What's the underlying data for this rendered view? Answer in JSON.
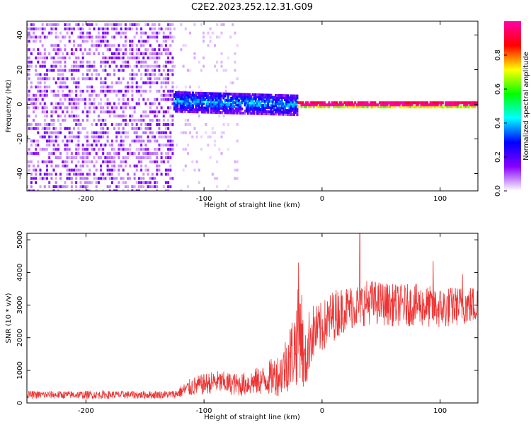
{
  "figure": {
    "title": "C2E2.2023.252.12.31.G09"
  },
  "chart_data": [
    {
      "type": "heatmap",
      "xlabel": "Height of straight line (km)",
      "ylabel": "Frequency (Hz)",
      "xlim": [
        -250,
        132
      ],
      "ylim": [
        -50,
        48
      ],
      "x_ticks": [
        -200,
        -100,
        0,
        100
      ],
      "y_ticks": [
        -40,
        -20,
        0,
        20,
        40
      ],
      "colorbar": {
        "label": "Normalized spectral amplitude",
        "range": [
          0,
          1
        ],
        "ticks": [
          0.0,
          0.2,
          0.4,
          0.6,
          0.8
        ],
        "tick_labels": [
          "0.0",
          "0.2",
          "0.4",
          "0.6",
          "0.8"
        ],
        "colormap": [
          "#ffffff",
          "#8800ff",
          "#0000ff",
          "#00ffff",
          "#00ff00",
          "#ffff00",
          "#ff0000",
          "#ff00aa"
        ]
      },
      "regions": [
        {
          "x_range": [
            -250,
            -125
          ],
          "freq_range": [
            -50,
            48
          ],
          "amplitude": 0.08,
          "description_level": "dense noise"
        },
        {
          "x_range": [
            -125,
            -70
          ],
          "freq_range": [
            -50,
            48
          ],
          "amplitude": 0.03,
          "description_level": "sparse noise"
        },
        {
          "x_range": [
            -125,
            -20
          ],
          "freq_center": 2,
          "freq_halfwidth": 6,
          "amplitude": 0.25
        },
        {
          "x_range": [
            -20,
            132
          ],
          "freq_center": 0,
          "freq_halfwidth": 1.5,
          "amplitude": 0.9
        }
      ]
    },
    {
      "type": "line",
      "xlabel": "Height of straight line (km)",
      "ylabel": "SNR (10 * v/v)",
      "xlim": [
        -250,
        132
      ],
      "ylim": [
        0,
        5200
      ],
      "x_ticks": [
        -200,
        -100,
        0,
        100
      ],
      "y_ticks": [
        0,
        1000,
        2000,
        3000,
        4000,
        5000
      ],
      "color": "#ee3333",
      "trend": {
        "x": [
          -250,
          -200,
          -150,
          -125,
          -110,
          -90,
          -70,
          -50,
          -35,
          -22,
          -18,
          -15,
          -10,
          -5,
          0,
          10,
          20,
          30,
          40,
          60,
          80,
          100,
          120,
          132
        ],
        "mean": [
          250,
          250,
          250,
          260,
          500,
          650,
          550,
          700,
          900,
          1800,
          2500,
          1000,
          2100,
          2200,
          2300,
          2700,
          2900,
          3000,
          3100,
          3000,
          3000,
          2900,
          3000,
          3000
        ],
        "spread": [
          120,
          120,
          120,
          120,
          300,
          350,
          350,
          450,
          700,
          1300,
          1700,
          900,
          1000,
          800,
          800,
          800,
          700,
          700,
          700,
          650,
          650,
          650,
          600,
          600
        ]
      },
      "peaks": [
        {
          "x": -20,
          "y": 4300
        },
        {
          "x": 32,
          "y": 5200
        },
        {
          "x": 94,
          "y": 4350
        },
        {
          "x": 119,
          "y": 3950
        }
      ]
    }
  ]
}
